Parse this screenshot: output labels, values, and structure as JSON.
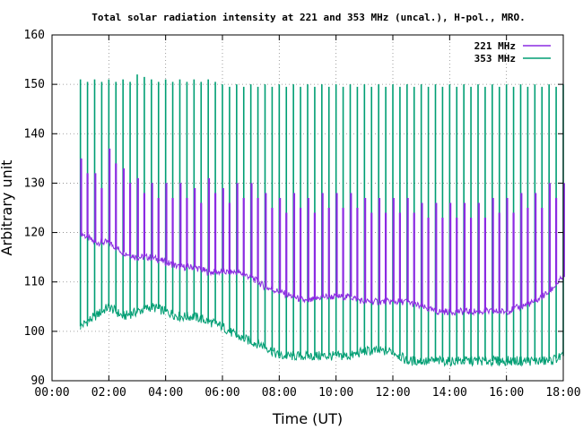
{
  "chart_data": {
    "type": "line",
    "title": "Total solar radiation intensity at 221 and 353 MHz (uncal.), H-pol., MRO.",
    "xlabel": "Time (UT)",
    "ylabel": "Arbitrary unit",
    "xlim": [
      0,
      18
    ],
    "ylim": [
      90,
      160
    ],
    "x_ticks": [
      "00:00",
      "02:00",
      "04:00",
      "06:00",
      "08:00",
      "10:00",
      "12:00",
      "14:00",
      "16:00",
      "18:00"
    ],
    "y_ticks": [
      "90",
      "100",
      "110",
      "120",
      "130",
      "140",
      "150",
      "160"
    ],
    "grid": true,
    "legend_position": "top-right",
    "series": [
      {
        "name": "221 MHz",
        "color": "#8b2be2",
        "x": [
          1.0,
          1.5,
          2.0,
          2.5,
          3.0,
          3.5,
          4.0,
          4.5,
          5.0,
          5.5,
          6.0,
          6.5,
          7.0,
          7.5,
          8.0,
          8.5,
          9.0,
          9.5,
          10.0,
          10.5,
          11.0,
          11.5,
          12.0,
          12.5,
          13.0,
          13.5,
          14.0,
          14.5,
          15.0,
          15.5,
          16.0,
          16.5,
          17.0,
          17.5,
          18.0
        ],
        "values": [
          120,
          118,
          118,
          116,
          115,
          115,
          114,
          113,
          113,
          112,
          112,
          112,
          111,
          109,
          108,
          107,
          106,
          107,
          107,
          107,
          106,
          106,
          106,
          106,
          105,
          104,
          104,
          104,
          104,
          104,
          104,
          105,
          106,
          108,
          111
        ],
        "spike_peaks": [
          135,
          132,
          137,
          133,
          131,
          130,
          130,
          130,
          129,
          131,
          129,
          130,
          130,
          128,
          127,
          128,
          127,
          128,
          128,
          128,
          127,
          127,
          127,
          127,
          126,
          126,
          126,
          126,
          126,
          127,
          127,
          128,
          128,
          130,
          130
        ]
      },
      {
        "name": "353 MHz",
        "color": "#009e73",
        "x": [
          1.0,
          1.5,
          2.0,
          2.5,
          3.0,
          3.5,
          4.0,
          4.5,
          5.0,
          5.5,
          6.0,
          6.5,
          7.0,
          7.5,
          8.0,
          8.5,
          9.0,
          9.5,
          10.0,
          10.5,
          11.0,
          11.5,
          12.0,
          12.5,
          13.0,
          13.5,
          14.0,
          14.5,
          15.0,
          15.5,
          16.0,
          16.5,
          17.0,
          17.5,
          18.0
        ],
        "values": [
          101,
          103,
          105,
          103,
          104,
          105,
          104,
          103,
          103,
          102,
          101,
          99,
          98,
          97,
          95,
          95,
          95,
          95,
          95,
          95,
          96,
          96,
          96,
          94,
          94,
          94,
          94,
          94,
          94,
          94,
          94,
          94,
          94,
          94,
          95
        ],
        "spike_peaks": [
          151,
          151,
          151,
          151,
          152,
          151,
          151,
          151,
          151,
          151,
          150,
          150,
          150,
          150,
          150,
          150,
          150,
          150,
          150,
          150,
          150,
          150,
          150,
          150,
          150,
          150,
          150,
          150,
          150,
          150,
          150,
          150,
          150,
          150,
          150
        ]
      }
    ]
  }
}
